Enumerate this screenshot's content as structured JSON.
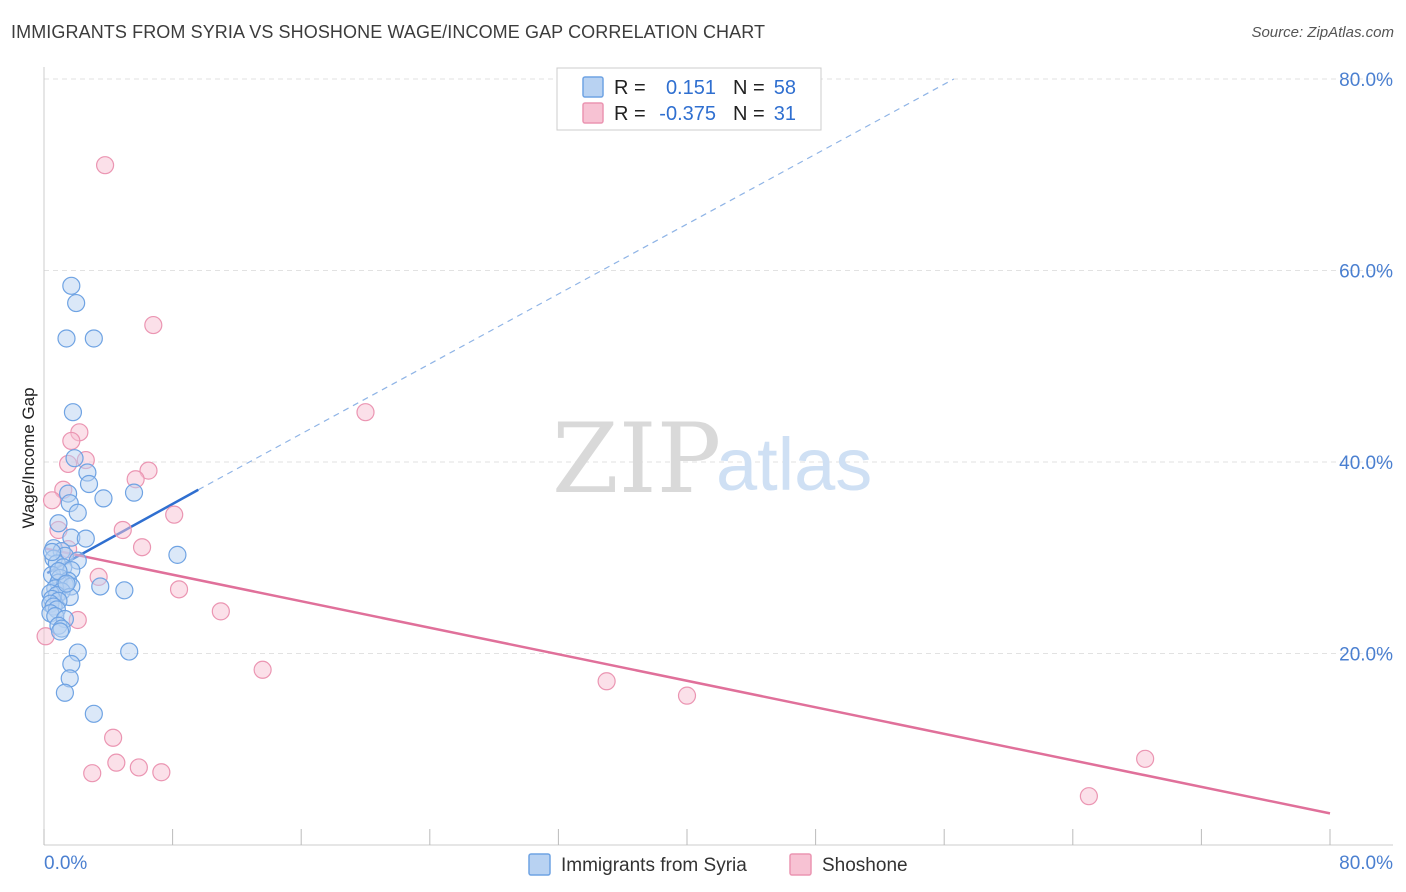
{
  "title": "IMMIGRANTS FROM SYRIA VS SHOSHONE WAGE/INCOME GAP CORRELATION CHART",
  "source": "Source: ZipAtlas.com",
  "watermark": {
    "zip": "ZIP",
    "atlas": "atlas"
  },
  "colors": {
    "blue_fill": "#b8d2f2",
    "blue_stroke": "#6fa3e3",
    "blue_line": "#2f6fd0",
    "pink_fill": "#f7c2d3",
    "pink_stroke": "#eb95b2",
    "pink_line": "#e0709a",
    "tick_text": "#4a7fd0",
    "grid": "#e2e2e2"
  },
  "legend": {
    "series": [
      {
        "r_label": "R =",
        "r_value": "0.151",
        "n_label": "N =",
        "n_value": "58"
      },
      {
        "r_label": "R =",
        "r_value": "-0.375",
        "n_label": "N =",
        "n_value": "31"
      }
    ]
  },
  "chart_data": {
    "type": "scatter",
    "title": "IMMIGRANTS FROM SYRIA VS SHOSHONE WAGE/INCOME GAP CORRELATION CHART",
    "xlabel": "",
    "ylabel": "Wage/Income Gap",
    "xlim": [
      0,
      80
    ],
    "ylim": [
      0,
      80
    ],
    "x_tick_labels": [
      "0.0%",
      "80.0%"
    ],
    "y_ticks": [
      20,
      40,
      60,
      80
    ],
    "y_tick_labels": [
      "20.0%",
      "40.0%",
      "60.0%",
      "80.0%"
    ],
    "grid": true,
    "legend_position": "bottom",
    "series": [
      {
        "name": "Immigrants from Syria",
        "color": "#6fa3e3",
        "points": [
          [
            1.7,
            58.4
          ],
          [
            2.0,
            56.6
          ],
          [
            1.4,
            52.9
          ],
          [
            3.1,
            52.9
          ],
          [
            1.8,
            45.2
          ],
          [
            1.9,
            40.4
          ],
          [
            2.7,
            38.9
          ],
          [
            2.8,
            37.7
          ],
          [
            1.5,
            36.7
          ],
          [
            3.7,
            36.2
          ],
          [
            5.6,
            36.8
          ],
          [
            1.6,
            35.7
          ],
          [
            2.1,
            34.7
          ],
          [
            0.9,
            33.6
          ],
          [
            1.7,
            32.1
          ],
          [
            2.6,
            32.0
          ],
          [
            0.6,
            31.0
          ],
          [
            1.1,
            30.7
          ],
          [
            1.3,
            30.2
          ],
          [
            0.6,
            29.9
          ],
          [
            2.1,
            29.7
          ],
          [
            0.8,
            29.4
          ],
          [
            1.2,
            29.0
          ],
          [
            1.7,
            28.7
          ],
          [
            0.5,
            28.2
          ],
          [
            1.0,
            27.9
          ],
          [
            1.5,
            27.6
          ],
          [
            0.9,
            27.4
          ],
          [
            1.3,
            27.2
          ],
          [
            1.7,
            27.0
          ],
          [
            0.7,
            26.8
          ],
          [
            1.1,
            26.5
          ],
          [
            0.4,
            26.3
          ],
          [
            0.8,
            26.1
          ],
          [
            1.6,
            25.9
          ],
          [
            0.5,
            25.7
          ],
          [
            0.9,
            25.5
          ],
          [
            0.4,
            25.2
          ],
          [
            0.6,
            24.9
          ],
          [
            0.8,
            24.6
          ],
          [
            0.4,
            24.2
          ],
          [
            0.7,
            23.9
          ],
          [
            1.3,
            23.6
          ],
          [
            0.9,
            22.9
          ],
          [
            1.1,
            22.6
          ],
          [
            1.0,
            22.3
          ],
          [
            2.1,
            20.1
          ],
          [
            1.7,
            18.9
          ],
          [
            1.6,
            17.4
          ],
          [
            1.3,
            15.9
          ],
          [
            3.1,
            13.7
          ],
          [
            3.5,
            27.0
          ],
          [
            5.0,
            26.6
          ],
          [
            8.3,
            30.3
          ],
          [
            5.3,
            20.2
          ],
          [
            0.5,
            30.6
          ],
          [
            0.9,
            28.6
          ],
          [
            1.4,
            27.3
          ]
        ],
        "trendline": {
          "x": [
            0.2,
            9.6
          ],
          "y": [
            28.4,
            37.1
          ],
          "dashed_extension_to": [
            56.6,
            80.0
          ]
        }
      },
      {
        "name": "Shoshone",
        "color": "#eb95b2",
        "points": [
          [
            3.8,
            71.0
          ],
          [
            6.8,
            54.3
          ],
          [
            20.0,
            45.2
          ],
          [
            2.2,
            43.1
          ],
          [
            1.7,
            42.2
          ],
          [
            2.6,
            40.2
          ],
          [
            1.5,
            39.8
          ],
          [
            6.5,
            39.1
          ],
          [
            5.7,
            38.2
          ],
          [
            1.2,
            37.1
          ],
          [
            0.5,
            36.0
          ],
          [
            8.1,
            34.5
          ],
          [
            0.9,
            32.9
          ],
          [
            4.9,
            32.9
          ],
          [
            6.1,
            31.1
          ],
          [
            1.5,
            30.9
          ],
          [
            3.4,
            28.0
          ],
          [
            8.4,
            26.7
          ],
          [
            11.0,
            24.4
          ],
          [
            2.1,
            23.5
          ],
          [
            0.1,
            21.8
          ],
          [
            13.6,
            18.3
          ],
          [
            35.0,
            17.1
          ],
          [
            40.0,
            15.6
          ],
          [
            4.3,
            11.2
          ],
          [
            4.5,
            8.6
          ],
          [
            5.9,
            8.1
          ],
          [
            7.3,
            7.6
          ],
          [
            3.0,
            7.5
          ],
          [
            65.0,
            5.1
          ],
          [
            68.5,
            9.0
          ]
        ],
        "trendline": {
          "x": [
            0,
            80
          ],
          "y": [
            31.0,
            3.3
          ]
        }
      }
    ]
  },
  "bottom_legend": [
    {
      "label": "Immigrants from Syria"
    },
    {
      "label": "Shoshone"
    }
  ]
}
